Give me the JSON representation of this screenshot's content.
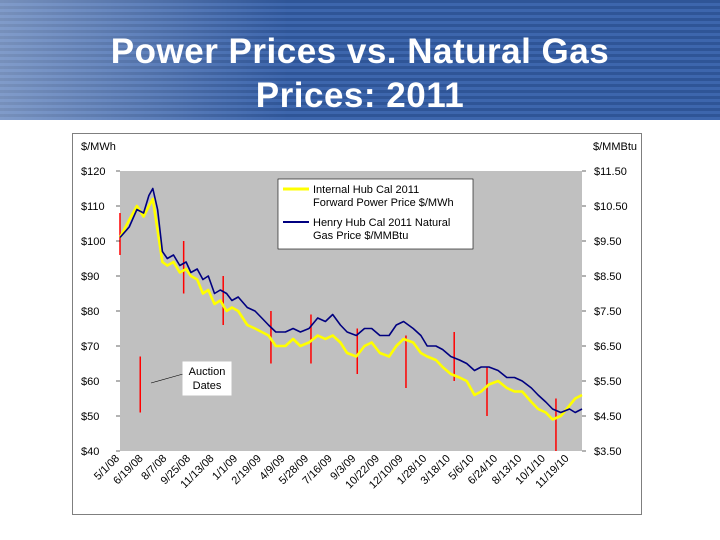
{
  "slide": {
    "title_line1": "Power Prices vs. Natural Gas",
    "title_line2": "Prices:  2011"
  },
  "colors": {
    "header": "#2f5597",
    "plot_background": "#c0c0c0",
    "power_series": "#ffff00",
    "gas_series": "#000080",
    "auction_markers": "#ff0000"
  },
  "chart_data": {
    "type": "line",
    "ylabel_left": "$/MWh",
    "ylabel_right": "$/MMBtu",
    "y_left_ticks": [
      "$120",
      "$110",
      "$100",
      "$90",
      "$80",
      "$70",
      "$60",
      "$50",
      "$40"
    ],
    "y_right_ticks": [
      "$11.50",
      "$10.50",
      "$9.50",
      "$8.50",
      "$7.50",
      "$6.50",
      "$5.50",
      "$4.50",
      "$3.50"
    ],
    "ylim_left": [
      40,
      120
    ],
    "ylim_right": [
      3.5,
      11.5
    ],
    "x_tick_labels": [
      "5/1/08",
      "6/19/08",
      "8/7/08",
      "9/25/08",
      "11/13/08",
      "1/1/09",
      "2/19/09",
      "4/9/09",
      "5/28/09",
      "7/16/09",
      "9/3/09",
      "10/22/09",
      "12/10/09",
      "1/28/10",
      "3/18/10",
      "5/6/10",
      "6/24/10",
      "8/13/10",
      "10/1/10",
      "11/19/10"
    ],
    "grid": false,
    "legend_position": "upper-middle",
    "series": [
      {
        "name": "Internal Hub Cal 2011 Forward Power Price $/MWh",
        "axis": "left",
        "points": [
          [
            "5/1/08",
            101
          ],
          [
            "5/20/08",
            106
          ],
          [
            "6/5/08",
            110
          ],
          [
            "6/19/08",
            107
          ],
          [
            "6/30/08",
            110
          ],
          [
            "7/8/08",
            112
          ],
          [
            "7/18/08",
            103
          ],
          [
            "7/28/08",
            94
          ],
          [
            "8/7/08",
            93
          ],
          [
            "8/20/08",
            94
          ],
          [
            "9/2/08",
            91
          ],
          [
            "9/15/08",
            92
          ],
          [
            "9/25/08",
            90
          ],
          [
            "10/8/08",
            89
          ],
          [
            "10/20/08",
            85
          ],
          [
            "10/31/08",
            86
          ],
          [
            "11/13/08",
            82
          ],
          [
            "11/25/08",
            83
          ],
          [
            "12/8/08",
            80
          ],
          [
            "12/19/08",
            81
          ],
          [
            "1/1/09",
            80
          ],
          [
            "1/20/09",
            76
          ],
          [
            "2/5/09",
            75
          ],
          [
            "2/19/09",
            74
          ],
          [
            "3/5/09",
            73
          ],
          [
            "3/20/09",
            70
          ],
          [
            "4/9/09",
            70
          ],
          [
            "4/25/09",
            72
          ],
          [
            "5/10/09",
            70
          ],
          [
            "5/28/09",
            71
          ],
          [
            "6/15/09",
            73
          ],
          [
            "7/1/09",
            72
          ],
          [
            "7/16/09",
            73
          ],
          [
            "8/1/09",
            71
          ],
          [
            "8/15/09",
            68
          ],
          [
            "9/3/09",
            67
          ],
          [
            "9/20/09",
            70
          ],
          [
            "10/5/09",
            71
          ],
          [
            "10/22/09",
            68
          ],
          [
            "11/10/09",
            67
          ],
          [
            "11/25/09",
            70
          ],
          [
            "12/10/09",
            72
          ],
          [
            "12/30/09",
            71
          ],
          [
            "1/15/10",
            68
          ],
          [
            "1/28/10",
            67
          ],
          [
            "2/15/10",
            66
          ],
          [
            "3/1/10",
            64
          ],
          [
            "3/18/10",
            62
          ],
          [
            "4/5/10",
            61
          ],
          [
            "4/20/10",
            60
          ],
          [
            "5/6/10",
            56
          ],
          [
            "5/20/10",
            57
          ],
          [
            "6/5/10",
            59
          ],
          [
            "6/24/10",
            60
          ],
          [
            "7/12/10",
            58
          ],
          [
            "7/28/10",
            57
          ],
          [
            "8/13/10",
            57
          ],
          [
            "9/1/10",
            54
          ],
          [
            "9/15/10",
            52
          ],
          [
            "10/1/10",
            51
          ],
          [
            "10/15/10",
            49
          ],
          [
            "11/1/10",
            50
          ],
          [
            "11/19/10",
            53
          ],
          [
            "12/1/10",
            55
          ],
          [
            "12/15/10",
            56
          ]
        ]
      },
      {
        "name": "Henry Hub Cal 2011 Natural Gas Price $/MMBtu",
        "axis": "right",
        "points": [
          [
            "5/1/08",
            9.6
          ],
          [
            "5/20/08",
            9.9
          ],
          [
            "6/5/08",
            10.4
          ],
          [
            "6/19/08",
            10.3
          ],
          [
            "6/30/08",
            10.8
          ],
          [
            "7/8/08",
            11.0
          ],
          [
            "7/18/08",
            10.4
          ],
          [
            "7/28/08",
            9.2
          ],
          [
            "8/7/08",
            9.0
          ],
          [
            "8/20/08",
            9.1
          ],
          [
            "9/2/08",
            8.8
          ],
          [
            "9/15/08",
            8.9
          ],
          [
            "9/25/08",
            8.6
          ],
          [
            "10/8/08",
            8.7
          ],
          [
            "10/20/08",
            8.4
          ],
          [
            "10/31/08",
            8.5
          ],
          [
            "11/13/08",
            8.0
          ],
          [
            "11/25/08",
            8.1
          ],
          [
            "12/8/08",
            8.0
          ],
          [
            "12/19/08",
            7.8
          ],
          [
            "1/1/09",
            7.9
          ],
          [
            "1/20/09",
            7.6
          ],
          [
            "2/5/09",
            7.5
          ],
          [
            "2/19/09",
            7.3
          ],
          [
            "3/5/09",
            7.1
          ],
          [
            "3/20/09",
            6.9
          ],
          [
            "4/9/09",
            6.9
          ],
          [
            "4/25/09",
            7.0
          ],
          [
            "5/10/09",
            6.9
          ],
          [
            "5/28/09",
            7.0
          ],
          [
            "6/15/09",
            7.3
          ],
          [
            "7/1/09",
            7.2
          ],
          [
            "7/16/09",
            7.4
          ],
          [
            "8/1/09",
            7.1
          ],
          [
            "8/15/09",
            6.9
          ],
          [
            "9/3/09",
            6.8
          ],
          [
            "9/20/09",
            7.0
          ],
          [
            "10/5/09",
            7.0
          ],
          [
            "10/22/09",
            6.8
          ],
          [
            "11/10/09",
            6.8
          ],
          [
            "11/25/09",
            7.1
          ],
          [
            "12/10/09",
            7.2
          ],
          [
            "12/30/09",
            7.0
          ],
          [
            "1/15/10",
            6.8
          ],
          [
            "1/28/10",
            6.5
          ],
          [
            "2/15/10",
            6.5
          ],
          [
            "3/1/10",
            6.4
          ],
          [
            "3/18/10",
            6.2
          ],
          [
            "4/5/10",
            6.1
          ],
          [
            "4/20/10",
            6.0
          ],
          [
            "5/6/10",
            5.8
          ],
          [
            "5/20/10",
            5.9
          ],
          [
            "6/5/10",
            5.9
          ],
          [
            "6/24/10",
            5.8
          ],
          [
            "7/12/10",
            5.6
          ],
          [
            "7/28/10",
            5.6
          ],
          [
            "8/13/10",
            5.5
          ],
          [
            "9/1/10",
            5.3
          ],
          [
            "9/15/10",
            5.1
          ],
          [
            "10/1/10",
            4.9
          ],
          [
            "10/15/10",
            4.7
          ],
          [
            "11/1/10",
            4.6
          ],
          [
            "11/19/10",
            4.7
          ],
          [
            "12/1/10",
            4.6
          ],
          [
            "12/15/10",
            4.7
          ]
        ]
      }
    ],
    "annotation": {
      "text_line1": "Auction",
      "text_line2": "Dates"
    },
    "auction_dates": [
      {
        "date": "5/1/08",
        "low": 96,
        "high": 108
      },
      {
        "date": "6/12/08",
        "low": 51,
        "high": 67
      },
      {
        "date": "9/10/08",
        "low": 85,
        "high": 100
      },
      {
        "date": "12/1/08",
        "low": 76,
        "high": 90
      },
      {
        "date": "3/10/09",
        "low": 65,
        "high": 80
      },
      {
        "date": "6/1/09",
        "low": 65,
        "high": 79
      },
      {
        "date": "9/5/09",
        "low": 62,
        "high": 75
      },
      {
        "date": "12/15/09",
        "low": 58,
        "high": 73
      },
      {
        "date": "3/25/10",
        "low": 60,
        "high": 74
      },
      {
        "date": "6/1/10",
        "low": 50,
        "high": 64
      },
      {
        "date": "10/22/10",
        "low": 40,
        "high": 55
      }
    ]
  }
}
